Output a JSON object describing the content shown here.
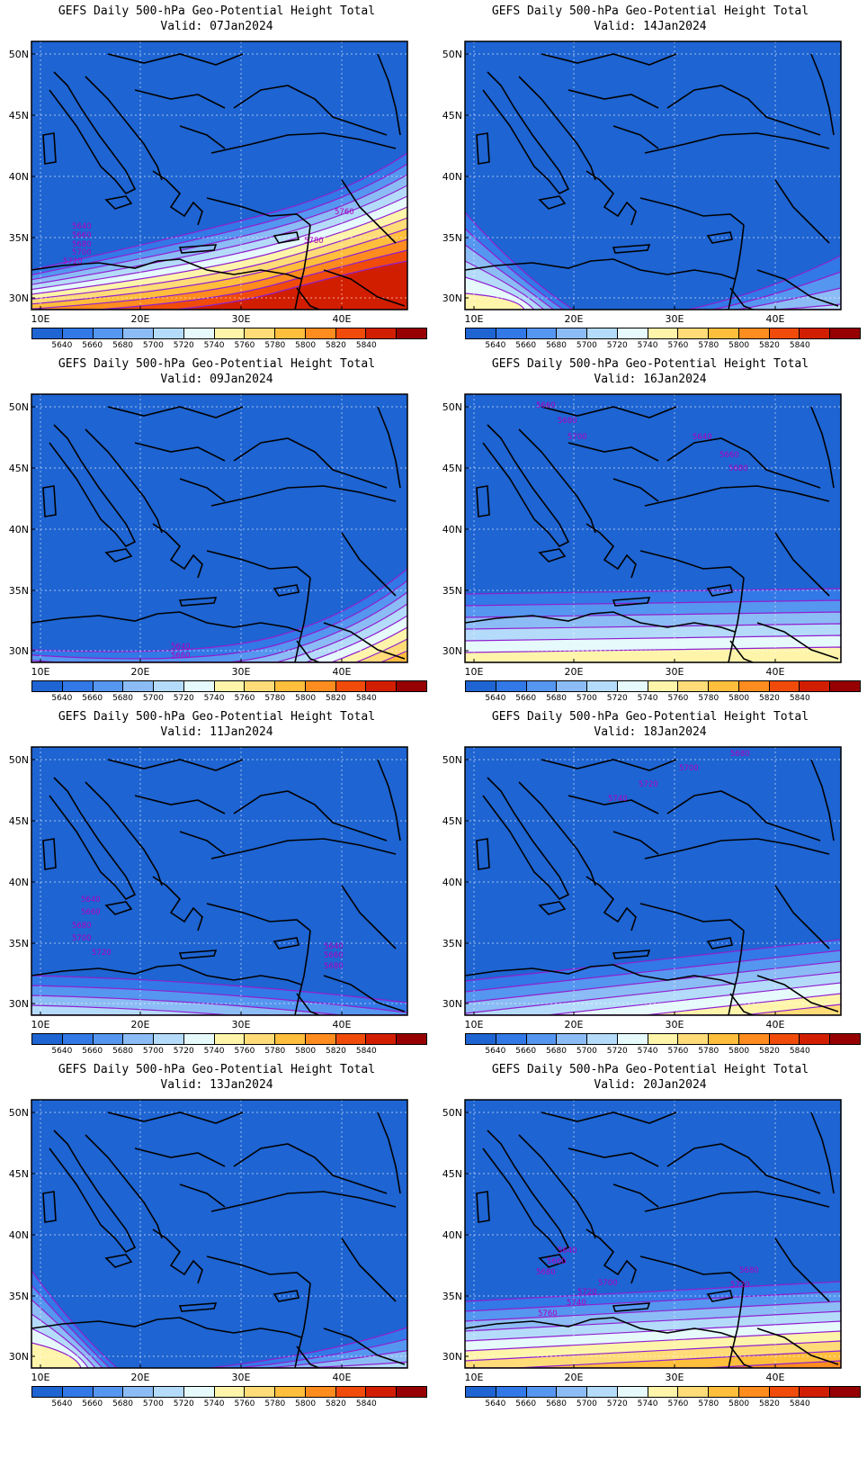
{
  "title": "GEFS Daily 500-hPa Geo-Potential Height Total",
  "valid_prefix": "Valid: ",
  "lat_labels": [
    "50N",
    "45N",
    "40N",
    "35N",
    "30N"
  ],
  "lon_labels": [
    "10E",
    "20E",
    "30E",
    "40E"
  ],
  "colorbar": {
    "labels": [
      "5640",
      "5660",
      "5680",
      "5700",
      "5720",
      "5740",
      "5760",
      "5780",
      "5800",
      "5820",
      "5840"
    ],
    "colors": [
      "#1e64d2",
      "#3278e6",
      "#5596f0",
      "#8cbcf5",
      "#b4dcfa",
      "#e6fafc",
      "#fff5aa",
      "#ffdc78",
      "#ffbe3c",
      "#ff8c1e",
      "#f04b0a",
      "#d21e00",
      "#960000"
    ]
  },
  "colors": {
    "base_fill": "#1e64d2",
    "contour": "#9020d0",
    "coast": "#000000"
  },
  "panels": [
    {
      "valid": "07Jan2024",
      "labels": [
        "5640",
        "5660",
        "5680",
        "5700",
        "5720",
        "5760",
        "5780"
      ]
    },
    {
      "valid": "14Jan2024",
      "labels": []
    },
    {
      "valid": "09Jan2024",
      "labels": [
        "5640",
        "5660"
      ]
    },
    {
      "valid": "16Jan2024",
      "labels": [
        "5640",
        "5660",
        "5680",
        "5700",
        "5640",
        "5660",
        "5680"
      ]
    },
    {
      "valid": "11Jan2024",
      "labels": [
        "5640",
        "5660",
        "5680",
        "5700",
        "5720",
        "5640",
        "5660",
        "5680"
      ]
    },
    {
      "valid": "18Jan2024",
      "labels": [
        "5680",
        "5700",
        "5720",
        "5740"
      ]
    },
    {
      "valid": "13Jan2024",
      "labels": []
    },
    {
      "valid": "20Jan2024",
      "labels": [
        "5640",
        "5660",
        "5680",
        "5700",
        "5720",
        "5740",
        "5760",
        "5680",
        "5720"
      ]
    }
  ]
}
